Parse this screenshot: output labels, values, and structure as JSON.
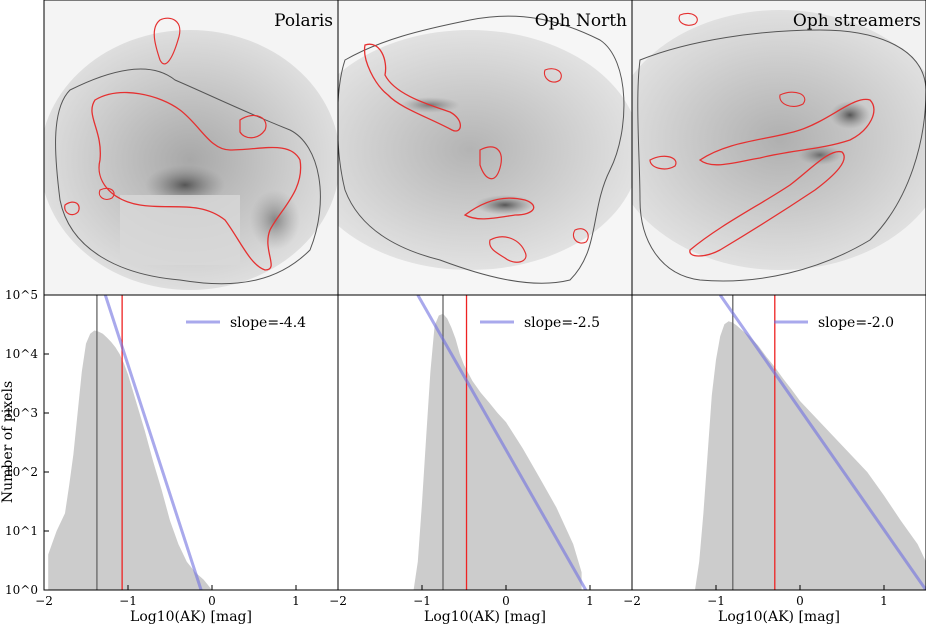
{
  "figure": {
    "ylabel": "Number of pixels",
    "ytick_labels": [
      "10^5",
      "10^4",
      "10^3",
      "10^2",
      "10^1",
      "10^0"
    ],
    "ytick_exponents": [
      5,
      4,
      3,
      2,
      1,
      0
    ]
  },
  "panels": [
    {
      "region": "Polaris",
      "slope_label": "slope=-4.4",
      "xlabel": "Log10(AK) [mag]",
      "xtick_labels": [
        "−2",
        "−1",
        "0",
        "1"
      ]
    },
    {
      "region": "Oph North",
      "slope_label": "slope=-2.5",
      "xlabel": "Log10(AK) [mag]",
      "xtick_labels": [
        "−2",
        "−1",
        "0",
        "1"
      ]
    },
    {
      "region": "Oph streamers",
      "slope_label": "slope=-2.0",
      "xlabel": "Log10(AK) [mag]",
      "xtick_labels": [
        "−2",
        "−1",
        "0",
        "1"
      ]
    }
  ],
  "chart_data": [
    {
      "type": "area",
      "title": "Polaris",
      "xlabel": "Log10(AK) [mag]",
      "ylabel": "Number of pixels",
      "xlim": [
        -2.0,
        1.5
      ],
      "ylim": [
        1,
        100000
      ],
      "yscale": "log",
      "x": [
        -1.95,
        -1.85,
        -1.75,
        -1.7,
        -1.65,
        -1.6,
        -1.55,
        -1.5,
        -1.45,
        -1.4,
        -1.35,
        -1.3,
        -1.25,
        -1.2,
        -1.15,
        -1.1,
        -1.05,
        -1.0,
        -0.9,
        -0.8,
        -0.7,
        -0.6,
        -0.5,
        -0.4,
        -0.3,
        -0.2,
        -0.1,
        0.0
      ],
      "y": [
        4,
        10,
        20,
        60,
        200,
        1000,
        5000,
        15000,
        22000,
        25000,
        24000,
        22000,
        19000,
        16000,
        13000,
        10000,
        7000,
        4500,
        1500,
        500,
        150,
        50,
        15,
        6,
        3,
        2,
        1.5,
        1
      ],
      "vlines": [
        {
          "x": -1.37,
          "color": "#666666"
        },
        {
          "x": -1.07,
          "color": "#ee2222"
        }
      ],
      "fit": {
        "slope": -4.4,
        "label": "slope=-4.4",
        "x": [
          -1.27,
          -0.13
        ],
        "y": [
          100000,
          1
        ]
      }
    },
    {
      "type": "area",
      "title": "Oph North",
      "xlabel": "Log10(AK) [mag]",
      "ylabel": "Number of pixels",
      "xlim": [
        -2.0,
        1.5
      ],
      "ylim": [
        1,
        100000
      ],
      "yscale": "log",
      "x": [
        -1.1,
        -1.05,
        -1.0,
        -0.95,
        -0.9,
        -0.85,
        -0.8,
        -0.75,
        -0.7,
        -0.65,
        -0.6,
        -0.55,
        -0.5,
        -0.4,
        -0.3,
        -0.2,
        -0.1,
        0.0,
        0.2,
        0.4,
        0.6,
        0.8,
        0.9
      ],
      "y": [
        1,
        3,
        30,
        400,
        5000,
        30000,
        45000,
        48000,
        40000,
        28000,
        18000,
        10000,
        6500,
        3500,
        2200,
        1500,
        1000,
        700,
        250,
        80,
        25,
        6,
        2
      ],
      "vlines": [
        {
          "x": -0.75,
          "color": "#666666"
        },
        {
          "x": -0.47,
          "color": "#ee2222"
        }
      ],
      "fit": {
        "slope": -2.5,
        "label": "slope=-2.5",
        "x": [
          -1.05,
          0.95
        ],
        "y": [
          100000,
          1
        ]
      }
    },
    {
      "type": "area",
      "title": "Oph streamers",
      "xlabel": "Log10(AK) [mag]",
      "ylabel": "Number of pixels",
      "xlim": [
        -2.0,
        1.5
      ],
      "ylim": [
        1,
        100000
      ],
      "yscale": "log",
      "x": [
        -1.25,
        -1.2,
        -1.15,
        -1.1,
        -1.05,
        -1.0,
        -0.95,
        -0.9,
        -0.85,
        -0.8,
        -0.75,
        -0.7,
        -0.6,
        -0.5,
        -0.4,
        -0.3,
        -0.2,
        -0.1,
        0.0,
        0.2,
        0.4,
        0.6,
        0.8,
        1.0,
        1.2,
        1.4,
        1.5
      ],
      "y": [
        1,
        3,
        20,
        200,
        2000,
        8000,
        20000,
        32000,
        36000,
        34000,
        30000,
        26000,
        20000,
        14000,
        9000,
        6000,
        3800,
        2500,
        1600,
        800,
        400,
        200,
        100,
        40,
        15,
        6,
        3
      ],
      "vlines": [
        {
          "x": -0.8,
          "color": "#666666"
        },
        {
          "x": -0.3,
          "color": "#ee2222"
        }
      ],
      "fit": {
        "slope": -2.0,
        "label": "slope=-2.0",
        "x": [
          -0.95,
          1.5
        ],
        "y": [
          100000,
          1
        ]
      }
    }
  ]
}
